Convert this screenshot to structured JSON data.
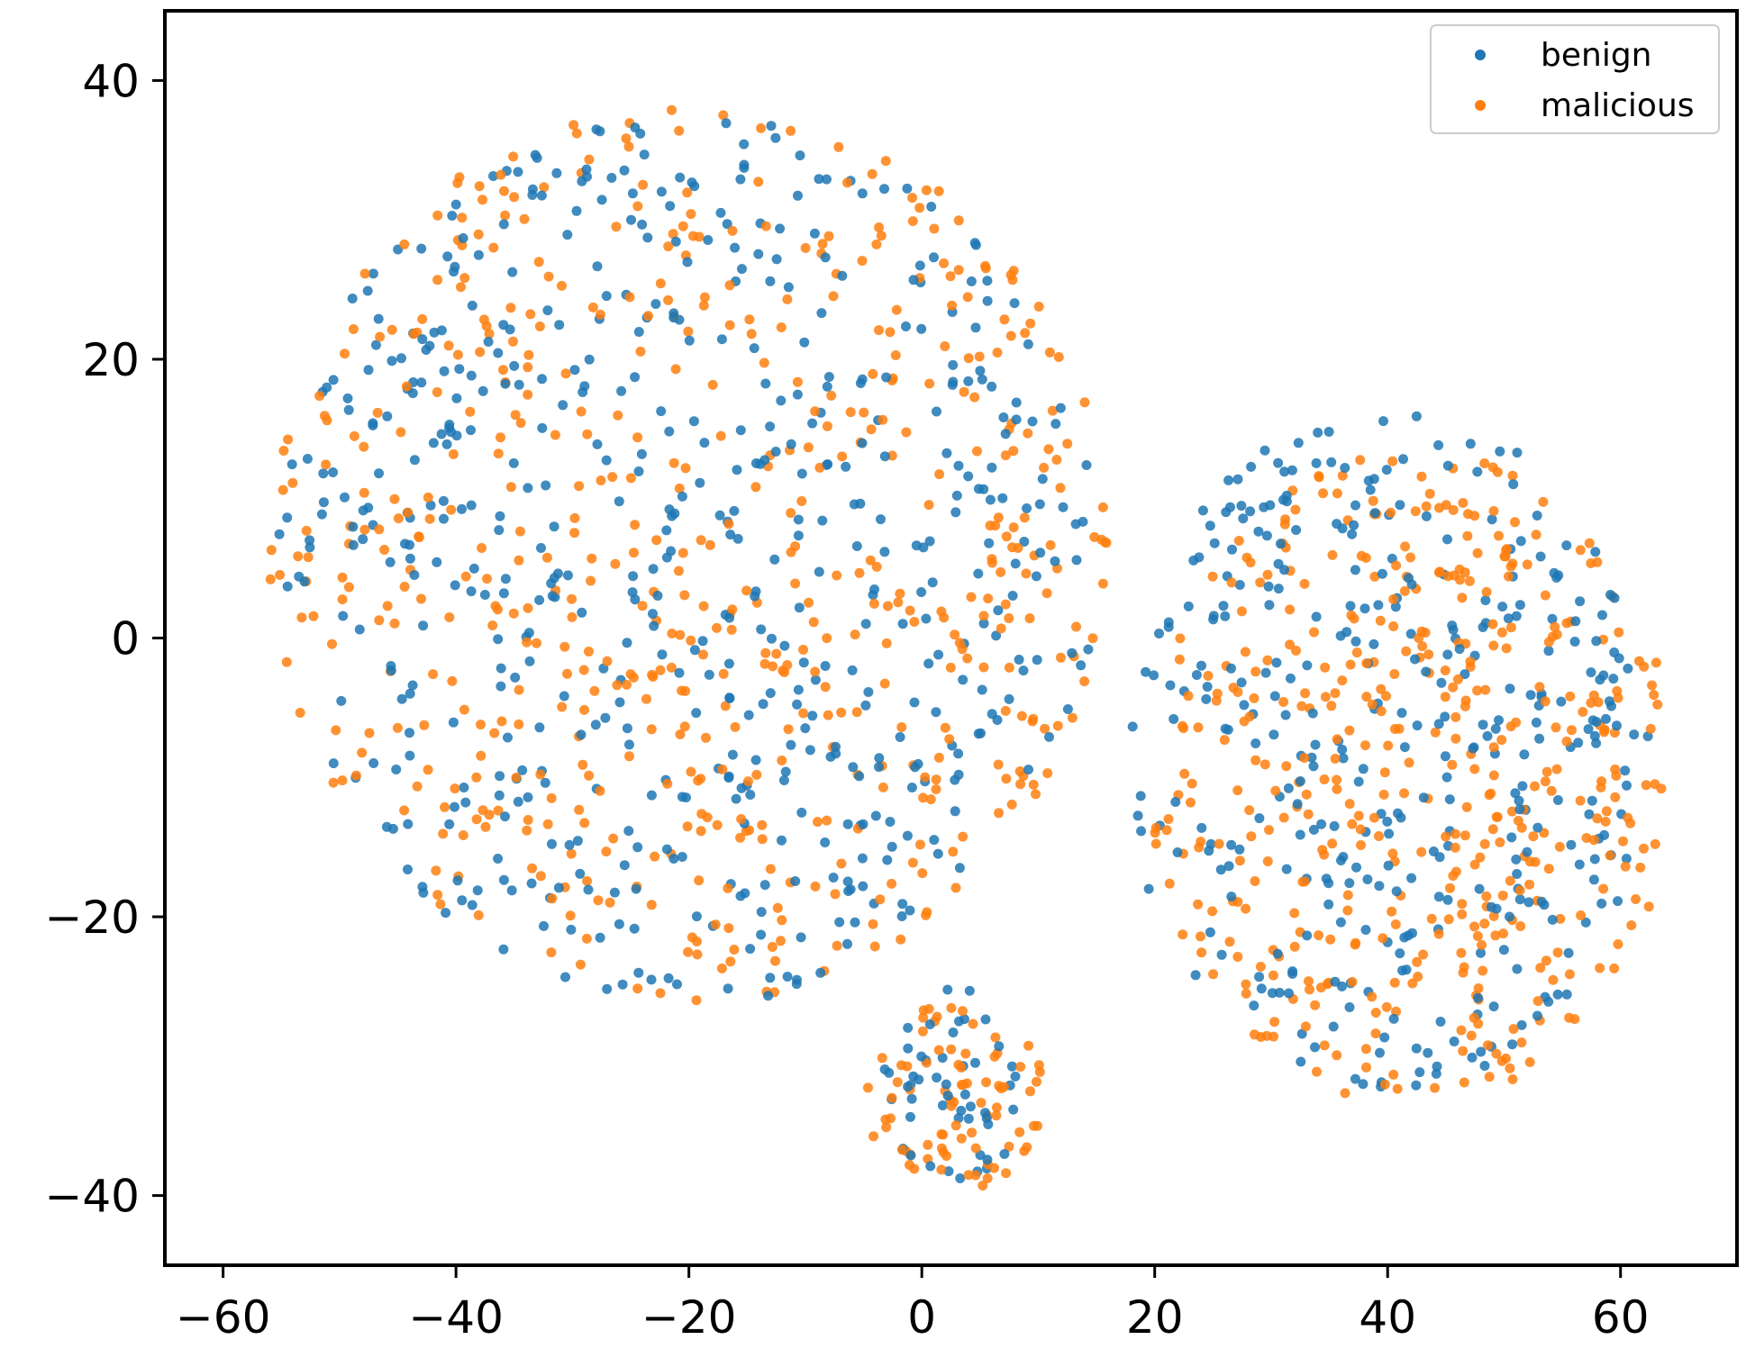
{
  "chart_data": {
    "type": "scatter",
    "title": "",
    "xlabel": "",
    "ylabel": "",
    "xlim": [
      -65,
      70
    ],
    "ylim": [
      -45,
      45
    ],
    "xticks": [
      -60,
      -40,
      -20,
      0,
      20,
      40,
      60
    ],
    "yticks": [
      -40,
      -20,
      0,
      20,
      40
    ],
    "xtick_labels": [
      "−60",
      "−40",
      "−20",
      "0",
      "20",
      "40",
      "60"
    ],
    "ytick_labels": [
      "−40",
      "−20",
      "0",
      "20",
      "40"
    ],
    "grid": false,
    "legend_position": "top-right",
    "series": [
      {
        "name": "benign",
        "color": "#1f77b4",
        "clusters": [
          {
            "center": [
              -20,
              6
            ],
            "radius": [
              36,
              33
            ],
            "count": 560
          },
          {
            "center": [
              40,
              -8
            ],
            "radius": [
              23,
              25
            ],
            "count": 360
          },
          {
            "center": [
              3,
              -32
            ],
            "radius": [
              7,
              7
            ],
            "count": 50
          }
        ]
      },
      {
        "name": "malicious",
        "color": "#ff7f0e",
        "clusters": [
          {
            "center": [
              -20,
              6
            ],
            "radius": [
              37,
              33
            ],
            "count": 560
          },
          {
            "center": [
              42,
              -10
            ],
            "radius": [
              23,
              24
            ],
            "count": 440
          },
          {
            "center": [
              3,
              -33
            ],
            "radius": [
              8,
              7
            ],
            "count": 80
          }
        ]
      }
    ]
  }
}
